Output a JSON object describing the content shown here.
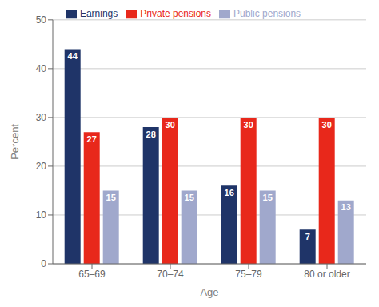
{
  "chart_data": {
    "type": "bar",
    "categories": [
      "65–69",
      "70–74",
      "75–79",
      "80 or older"
    ],
    "series": [
      {
        "name": "Earnings",
        "color": "#1f3468",
        "values": [
          44,
          28,
          16,
          7
        ]
      },
      {
        "name": "Private pensions",
        "color": "#e8281b",
        "values": [
          27,
          30,
          30,
          30
        ]
      },
      {
        "name": "Public pensions",
        "color": "#a0a8cc",
        "values": [
          15,
          15,
          15,
          13
        ]
      }
    ],
    "xlabel": "Age",
    "ylabel": "Percent",
    "ylim": [
      0,
      50
    ],
    "yticks": [
      0,
      10,
      20,
      30,
      40,
      50
    ],
    "grid": true,
    "legend": "top",
    "data_labels": true
  }
}
